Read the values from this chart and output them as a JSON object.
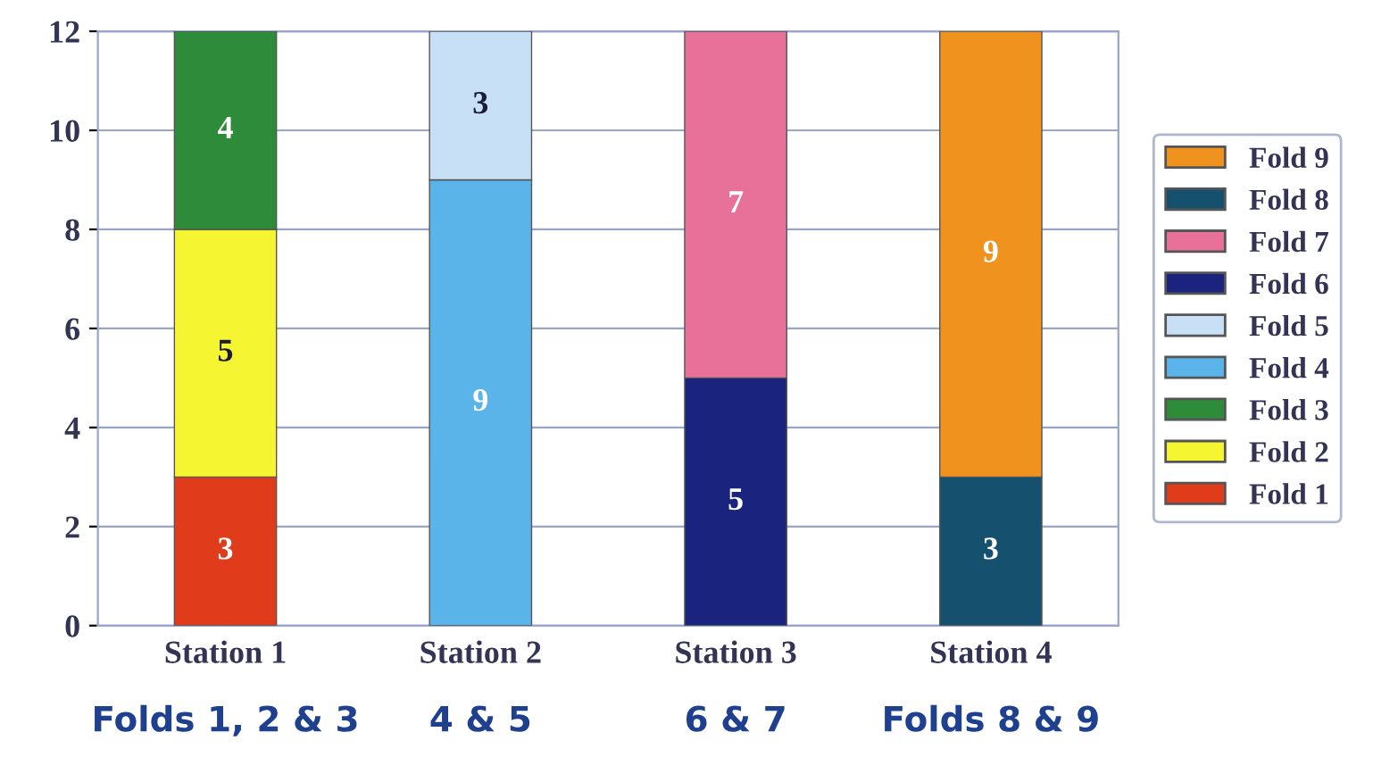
{
  "chart_data": {
    "type": "bar",
    "stacked": true,
    "categories": [
      "Station 1",
      "Station 2",
      "Station 3",
      "Station 4"
    ],
    "annotations": [
      "Folds 1, 2 & 3",
      "4 & 5",
      "6 & 7",
      "Folds 8 & 9"
    ],
    "series": [
      {
        "name": "Fold 1",
        "color": "#e03c1c",
        "values": [
          3,
          null,
          null,
          null
        ]
      },
      {
        "name": "Fold 2",
        "color": "#f5f532",
        "values": [
          5,
          null,
          null,
          null
        ]
      },
      {
        "name": "Fold 3",
        "color": "#2e8b3a",
        "values": [
          4,
          null,
          null,
          null
        ]
      },
      {
        "name": "Fold 4",
        "color": "#5ab4ea",
        "values": [
          null,
          9,
          null,
          null
        ]
      },
      {
        "name": "Fold 5",
        "color": "#c8e0f5",
        "values": [
          null,
          3,
          null,
          null
        ]
      },
      {
        "name": "Fold 6",
        "color": "#1a237e",
        "values": [
          null,
          null,
          5,
          null
        ]
      },
      {
        "name": "Fold 7",
        "color": "#e8719a",
        "values": [
          null,
          null,
          7,
          null
        ]
      },
      {
        "name": "Fold 8",
        "color": "#15506e",
        "values": [
          null,
          null,
          null,
          3
        ]
      },
      {
        "name": "Fold 9",
        "color": "#f0921e",
        "values": [
          null,
          null,
          null,
          9
        ]
      }
    ],
    "ylim": [
      0,
      12
    ],
    "yticks": [
      0,
      2,
      4,
      6,
      8,
      10,
      12
    ],
    "grid": "y",
    "legend": "right",
    "data_labels": true
  }
}
